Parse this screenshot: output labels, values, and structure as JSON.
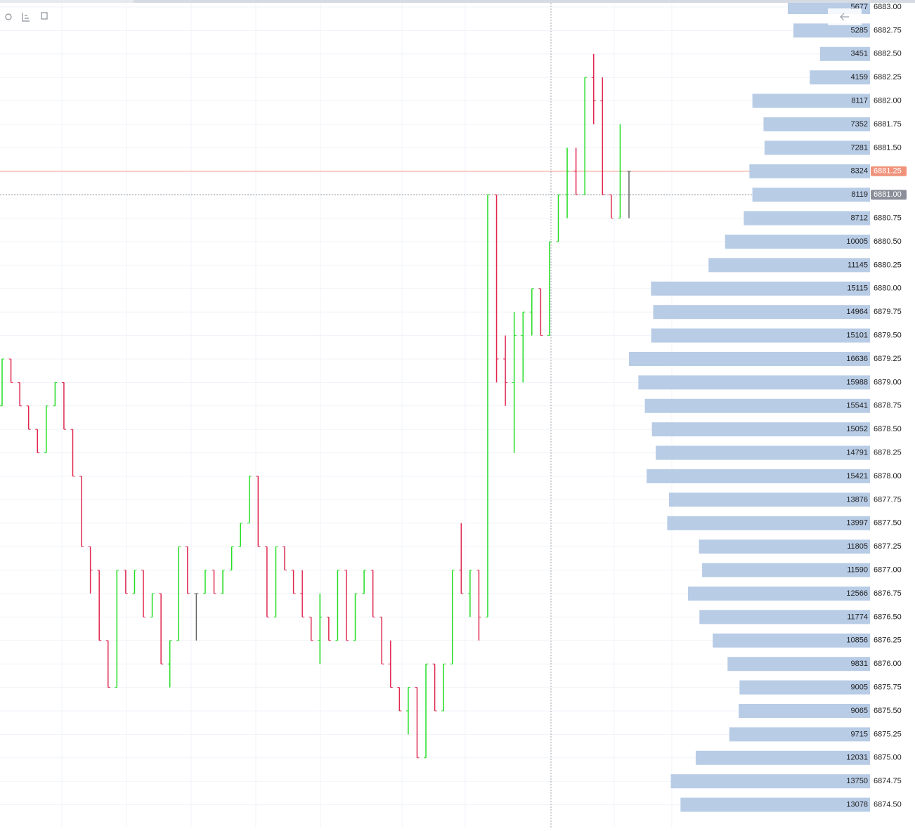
{
  "chart_data": {
    "type": "ohlc",
    "open": [
      6878.75,
      6879.25,
      6879,
      6878.75,
      6878.5,
      6878.25,
      6878.75,
      6879,
      6878.5,
      6878,
      6877.25,
      6877,
      6876.25,
      6875.75,
      6877,
      6876.75,
      6877,
      6876.5,
      6876.75,
      6876,
      6876.25,
      6877.25,
      6876.75,
      6876.75,
      6877,
      6876.75,
      6877,
      6877.25,
      6877.5,
      6878,
      6877.25,
      6876.5,
      6877.25,
      6877,
      6876.75,
      6876.5,
      6876.25,
      6876.5,
      6876.25,
      6877,
      6876.25,
      6876.75,
      6877,
      6876.5,
      6876,
      6875.75,
      6875.5,
      6875.75,
      6875,
      6876,
      6875.5,
      6876,
      6877,
      6876.75,
      6877,
      6876.5,
      6881,
      6879.25,
      6879,
      6879.5,
      6879.75,
      6880,
      6879.5,
      6880.5,
      6881,
      6881.25,
      6881,
      6882.25,
      6882,
      6881,
      6880.75,
      6881.25
    ],
    "high": [
      6879.25,
      6879.25,
      6879,
      6878.75,
      6878.5,
      6878.75,
      6879,
      6879,
      6878.5,
      6878,
      6877.25,
      6877,
      6876.25,
      6877,
      6877,
      6877,
      6877,
      6876.75,
      6876.75,
      6876.25,
      6877.25,
      6877.25,
      6876.75,
      6877,
      6877,
      6877,
      6877.25,
      6877.5,
      6878,
      6878,
      6877.25,
      6877.25,
      6877.25,
      6877,
      6877,
      6876.5,
      6876.75,
      6876.5,
      6877,
      6877,
      6876.75,
      6877,
      6877,
      6876.5,
      6876.25,
      6875.75,
      6875.75,
      6875.75,
      6876,
      6876,
      6876,
      6877,
      6877.5,
      6877,
      6877,
      6881,
      6881,
      6879.5,
      6879.75,
      6879.75,
      6880,
      6880,
      6880.5,
      6881,
      6881.5,
      6881.5,
      6882.25,
      6882.5,
      6882.25,
      6881,
      6881.75,
      6881.25
    ],
    "low": [
      6878.75,
      6879,
      6878.75,
      6878.5,
      6878.25,
      6878.25,
      6878.75,
      6878.5,
      6878,
      6877.25,
      6876.75,
      6876.25,
      6875.75,
      6875.75,
      6876.75,
      6876.75,
      6876.5,
      6876.5,
      6876,
      6875.75,
      6876.25,
      6876.75,
      6876.25,
      6876.75,
      6876.75,
      6876.75,
      6877,
      6877.25,
      6877.5,
      6877.25,
      6876.5,
      6876.5,
      6877,
      6876.75,
      6876.5,
      6876.25,
      6876,
      6876.25,
      6876.25,
      6876.25,
      6876.25,
      6876.75,
      6876.5,
      6876,
      6875.75,
      6875.5,
      6875.25,
      6875,
      6875,
      6875.5,
      6875.5,
      6876,
      6876.75,
      6876.5,
      6876.25,
      6876.5,
      6879,
      6878.75,
      6878.25,
      6879,
      6879.5,
      6879.5,
      6879.5,
      6880.5,
      6880.75,
      6881,
      6881,
      6881.75,
      6881,
      6880.75,
      6880.75,
      6880.75
    ],
    "close": [
      6879.25,
      6879,
      6878.75,
      6878.5,
      6878.25,
      6878.75,
      6879,
      6878.5,
      6878,
      6877.25,
      6877,
      6876.25,
      6875.75,
      6877,
      6876.75,
      6877,
      6876.5,
      6876.75,
      6876,
      6876.25,
      6877.25,
      6876.75,
      6876.75,
      6877,
      6876.75,
      6877,
      6877.25,
      6877.5,
      6878,
      6877.25,
      6876.5,
      6877.25,
      6877,
      6876.75,
      6876.5,
      6876.25,
      6876.5,
      6876.25,
      6877,
      6876.25,
      6876.75,
      6877,
      6876.5,
      6876,
      6875.75,
      6875.5,
      6875.75,
      6875,
      6876,
      6875.5,
      6876,
      6877,
      6876.75,
      6877,
      6876.5,
      6881,
      6879.25,
      6879,
      6879.5,
      6879.75,
      6880,
      6879.5,
      6880.5,
      6881,
      6881.25,
      6881,
      6882.25,
      6882,
      6881,
      6880.75,
      6881.25,
      6881.25
    ],
    "up_color": "#22dd22",
    "down_color": "#e0284f",
    "flat_color": "#666666",
    "ylim": [
      6874.25,
      6883
    ],
    "yticks": [
      {
        "value": 6883,
        "label": "6883.00"
      },
      {
        "value": 6882.75,
        "label": "6882.75"
      },
      {
        "value": 6882.5,
        "label": "6882.50"
      },
      {
        "value": 6882.25,
        "label": "6882.25"
      },
      {
        "value": 6882,
        "label": "6882.00"
      },
      {
        "value": 6881.75,
        "label": "6881.75"
      },
      {
        "value": 6881.5,
        "label": "6881.50"
      },
      {
        "value": 6881.25,
        "label": "6881.25"
      },
      {
        "value": 6881,
        "label": "6881.00"
      },
      {
        "value": 6880.75,
        "label": "6880.75"
      },
      {
        "value": 6880.5,
        "label": "6880.50"
      },
      {
        "value": 6880.25,
        "label": "6880.25"
      },
      {
        "value": 6880,
        "label": "6880.00"
      },
      {
        "value": 6879.75,
        "label": "6879.75"
      },
      {
        "value": 6879.5,
        "label": "6879.50"
      },
      {
        "value": 6879.25,
        "label": "6879.25"
      },
      {
        "value": 6879,
        "label": "6879.00"
      },
      {
        "value": 6878.75,
        "label": "6878.75"
      },
      {
        "value": 6878.5,
        "label": "6878.50"
      },
      {
        "value": 6878.25,
        "label": "6878.25"
      },
      {
        "value": 6878,
        "label": "6878.00"
      },
      {
        "value": 6877.75,
        "label": "6877.75"
      },
      {
        "value": 6877.5,
        "label": "6877.50"
      },
      {
        "value": 6877.25,
        "label": "6877.25"
      },
      {
        "value": 6877,
        "label": "6877.00"
      },
      {
        "value": 6876.75,
        "label": "6876.75"
      },
      {
        "value": 6876.5,
        "label": "6876.50"
      },
      {
        "value": 6876.25,
        "label": "6876.25"
      },
      {
        "value": 6876,
        "label": "6876.00"
      },
      {
        "value": 6875.75,
        "label": "6875.75"
      },
      {
        "value": 6875.5,
        "label": "6875.50"
      },
      {
        "value": 6875.25,
        "label": "6875.25"
      },
      {
        "value": 6875,
        "label": "6875.00"
      },
      {
        "value": 6874.75,
        "label": "6874.75"
      },
      {
        "value": 6874.5,
        "label": "6874.50"
      }
    ],
    "volume_profile": {
      "color": "#b8cce6",
      "values": [
        5677,
        5285,
        3451,
        4159,
        8117,
        7352,
        7281,
        8324,
        8119,
        8712,
        10005,
        11145,
        15115,
        14964,
        15101,
        16636,
        15988,
        15541,
        15052,
        14791,
        15421,
        13876,
        13997,
        11805,
        11590,
        12566,
        11774,
        10856,
        9831,
        9005,
        9065,
        9715,
        12031,
        13750,
        13078
      ]
    },
    "last_price_tick": 7,
    "last_price_color": "#f0937d",
    "crosshair_tick": 8,
    "crosshair_color": "#8a8f99",
    "grid": true
  }
}
